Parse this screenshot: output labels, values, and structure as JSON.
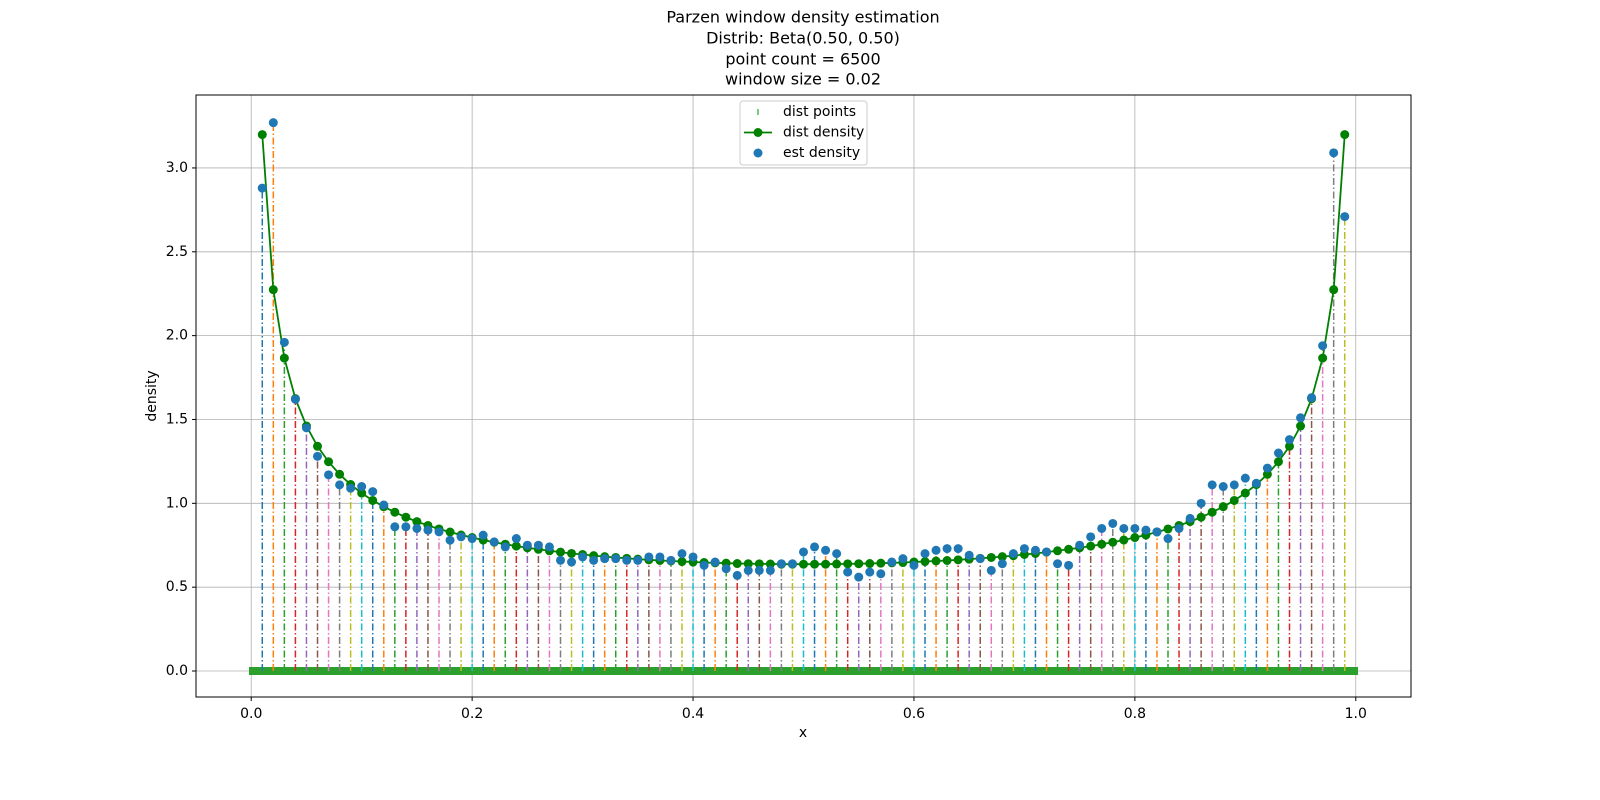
{
  "chart_data": {
    "type": "stem-density",
    "title": [
      "Parzen window density estimation",
      "Distrib: Beta(0.50, 0.50)",
      "point count = 6500",
      "window size = 0.02"
    ],
    "xlabel": "x",
    "ylabel": "density",
    "xlim": [
      -0.05,
      1.05
    ],
    "ylim": [
      -0.155,
      3.435
    ],
    "xticks": [
      {
        "value": 0,
        "label": "0.0"
      },
      0.2,
      0.4,
      0.6,
      0.8,
      {
        "value": 1,
        "label": "1.0"
      }
    ],
    "yticks": [
      {
        "value": 0,
        "label": "0.0"
      },
      0.5,
      {
        "value": 1,
        "label": "1.0"
      },
      1.5,
      {
        "value": 2,
        "label": "2.0"
      },
      2.5,
      {
        "value": 3,
        "label": "3.0"
      }
    ],
    "grid": true,
    "legend": "upper center",
    "stem_colors": [
      "#1f77b4",
      "#ff7f0e",
      "#2ca02c",
      "#d62728",
      "#9467bd",
      "#8c564b",
      "#e377c2",
      "#7f7f7f",
      "#bcbd22",
      "#17becf"
    ],
    "x": [
      0.01,
      0.02,
      0.03,
      0.04,
      0.05,
      0.06,
      0.07,
      0.08,
      0.09,
      0.1,
      0.11,
      0.12,
      0.13,
      0.14,
      0.15,
      0.16,
      0.17,
      0.18,
      0.19,
      0.2,
      0.21,
      0.22,
      0.23,
      0.24,
      0.25,
      0.26,
      0.27,
      0.28,
      0.29,
      0.3,
      0.31,
      0.32,
      0.33,
      0.34,
      0.35,
      0.36,
      0.37,
      0.38,
      0.39,
      0.4,
      0.41,
      0.42,
      0.43,
      0.44,
      0.45,
      0.46,
      0.47,
      0.48,
      0.49,
      0.5,
      0.51,
      0.52,
      0.53,
      0.54,
      0.55,
      0.56,
      0.57,
      0.58,
      0.59,
      0.6,
      0.61,
      0.62,
      0.63,
      0.64,
      0.65,
      0.66,
      0.67,
      0.68,
      0.69,
      0.7,
      0.71,
      0.72,
      0.73,
      0.74,
      0.75,
      0.76,
      0.77,
      0.78,
      0.79,
      0.8,
      0.81,
      0.82,
      0.83,
      0.84,
      0.85,
      0.86,
      0.87,
      0.88,
      0.89,
      0.9,
      0.91,
      0.92,
      0.93,
      0.94,
      0.95,
      0.96,
      0.97,
      0.98,
      0.99
    ],
    "series": [
      {
        "name": "dist points",
        "color": "#2ca02c"
      },
      {
        "name": "dist density",
        "color": "green",
        "values": [
          3.199,
          2.274,
          1.866,
          1.624,
          1.461,
          1.34,
          1.248,
          1.173,
          1.112,
          1.061,
          1.017,
          0.98,
          0.947,
          0.917,
          0.891,
          0.868,
          0.847,
          0.829,
          0.811,
          0.796,
          0.781,
          0.768,
          0.756,
          0.745,
          0.735,
          0.726,
          0.717,
          0.709,
          0.701,
          0.695,
          0.688,
          0.682,
          0.677,
          0.672,
          0.667,
          0.663,
          0.659,
          0.656,
          0.653,
          0.65,
          0.647,
          0.645,
          0.643,
          0.641,
          0.64,
          0.639,
          0.638,
          0.637,
          0.637,
          0.637,
          0.637,
          0.637,
          0.638,
          0.639,
          0.64,
          0.641,
          0.643,
          0.645,
          0.647,
          0.65,
          0.653,
          0.656,
          0.659,
          0.663,
          0.667,
          0.672,
          0.677,
          0.682,
          0.688,
          0.695,
          0.701,
          0.709,
          0.717,
          0.726,
          0.735,
          0.745,
          0.756,
          0.768,
          0.781,
          0.796,
          0.811,
          0.829,
          0.847,
          0.868,
          0.891,
          0.917,
          0.947,
          0.98,
          1.017,
          1.061,
          1.112,
          1.173,
          1.248,
          1.34,
          1.461,
          1.624,
          1.866,
          2.274,
          3.199
        ]
      },
      {
        "name": "est density",
        "color": "#1f77b4",
        "values": [
          2.88,
          3.27,
          1.96,
          1.62,
          1.45,
          1.28,
          1.17,
          1.11,
          1.09,
          1.1,
          1.07,
          0.99,
          0.86,
          0.86,
          0.85,
          0.84,
          0.83,
          0.78,
          0.8,
          0.79,
          0.81,
          0.77,
          0.74,
          0.79,
          0.75,
          0.75,
          0.74,
          0.66,
          0.65,
          0.68,
          0.66,
          0.67,
          0.67,
          0.66,
          0.66,
          0.68,
          0.68,
          0.66,
          0.7,
          0.68,
          0.63,
          0.65,
          0.61,
          0.57,
          0.6,
          0.6,
          0.6,
          0.64,
          0.64,
          0.71,
          0.74,
          0.72,
          0.7,
          0.59,
          0.56,
          0.59,
          0.58,
          0.65,
          0.67,
          0.63,
          0.7,
          0.72,
          0.73,
          0.73,
          0.69,
          0.67,
          0.6,
          0.64,
          0.7,
          0.73,
          0.72,
          0.71,
          0.64,
          0.63,
          0.75,
          0.8,
          0.85,
          0.88,
          0.85,
          0.85,
          0.84,
          0.83,
          0.79,
          0.85,
          0.91,
          1.0,
          1.11,
          1.1,
          1.11,
          1.15,
          1.12,
          1.21,
          1.3,
          1.38,
          1.51,
          1.63,
          1.94,
          3.09,
          2.71
        ]
      }
    ]
  }
}
